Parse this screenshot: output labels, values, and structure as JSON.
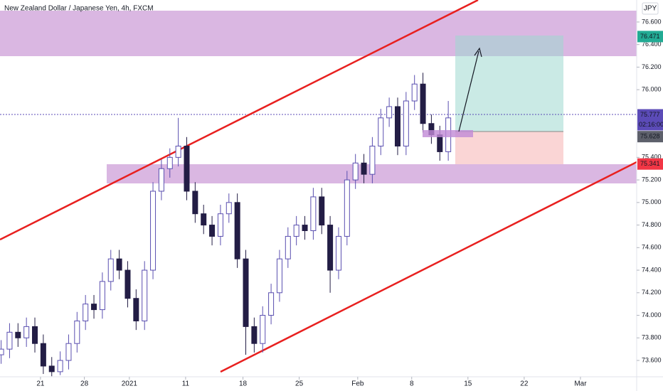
{
  "chart_data": {
    "type": "candlestick",
    "title": "New Zealand Dollar / Japanese Yen, 4h, FXCM",
    "currency": "JPY",
    "countdown": "02:16:00",
    "up_color": "#5a4fb0",
    "down_color": "#231d45",
    "x": [
      -3.5,
      -2.75,
      -2,
      -1.25,
      -0.5,
      0.25,
      1,
      1.75,
      2.5,
      3.25,
      4,
      4.75,
      5.5,
      6.25,
      7,
      7.75,
      8.5,
      9.25,
      10,
      10.75,
      11.5,
      12.25,
      13,
      13.75,
      14.5,
      15.25,
      16,
      16.75,
      17.5,
      18.25,
      19,
      19.75,
      20.5,
      21.25,
      22,
      22.75,
      23.5,
      24.25,
      25,
      25.75,
      26.5,
      27.25,
      28,
      28.75,
      29.5,
      30.25,
      31,
      31.75,
      32.5,
      33.25,
      34,
      34.75,
      35.5,
      36.25
    ],
    "open": [
      73.65,
      73.7,
      73.85,
      73.8,
      73.9,
      73.75,
      73.55,
      73.5,
      73.6,
      73.75,
      73.95,
      74.1,
      74.05,
      74.3,
      74.5,
      74.4,
      74.15,
      73.95,
      74.4,
      75.1,
      75.3,
      75.4,
      75.5,
      75.1,
      74.9,
      74.8,
      74.7,
      74.9,
      75.0,
      74.5,
      73.9,
      73.75,
      74.0,
      74.2,
      74.5,
      74.7,
      74.8,
      74.75,
      75.05,
      74.8,
      74.4,
      74.7,
      75.2,
      75.35,
      75.25,
      75.5,
      75.75,
      75.85,
      75.5,
      75.9,
      76.05,
      75.7,
      75.6,
      75.45
    ],
    "high": [
      73.78,
      73.93,
      73.93,
      73.98,
      73.98,
      73.83,
      73.63,
      73.68,
      73.83,
      74.03,
      74.18,
      74.18,
      74.38,
      74.58,
      74.58,
      74.48,
      74.23,
      74.48,
      75.18,
      75.38,
      75.48,
      75.75,
      75.58,
      75.18,
      74.98,
      74.88,
      74.98,
      75.08,
      75.08,
      74.58,
      73.98,
      74.08,
      74.28,
      74.58,
      74.78,
      74.88,
      74.88,
      75.13,
      75.13,
      74.88,
      74.78,
      75.28,
      75.43,
      75.43,
      75.58,
      75.83,
      75.93,
      75.93,
      75.98,
      76.13,
      76.15,
      75.78,
      75.68,
      75.9
    ],
    "low": [
      73.57,
      73.62,
      73.72,
      73.72,
      73.67,
      73.48,
      73.46,
      73.47,
      73.52,
      73.67,
      73.87,
      73.97,
      73.97,
      74.22,
      74.32,
      74.07,
      73.87,
      73.87,
      74.32,
      75.02,
      75.22,
      75.32,
      75.02,
      74.82,
      74.72,
      74.62,
      74.62,
      74.82,
      74.42,
      73.65,
      73.67,
      73.67,
      73.92,
      74.12,
      74.42,
      74.62,
      74.67,
      74.67,
      74.72,
      74.2,
      74.32,
      74.62,
      75.12,
      75.17,
      75.17,
      75.42,
      75.67,
      75.42,
      75.42,
      75.82,
      75.62,
      75.52,
      75.37,
      75.37
    ],
    "close": [
      73.7,
      73.85,
      73.8,
      73.9,
      73.75,
      73.55,
      73.5,
      73.6,
      73.75,
      73.95,
      74.1,
      74.05,
      74.3,
      74.5,
      74.4,
      74.15,
      73.95,
      74.4,
      75.1,
      75.3,
      75.4,
      75.5,
      75.1,
      74.9,
      74.8,
      74.7,
      74.9,
      75.0,
      74.5,
      73.9,
      73.75,
      74.0,
      74.2,
      74.5,
      74.7,
      74.8,
      74.75,
      75.05,
      74.8,
      74.4,
      74.7,
      75.2,
      75.35,
      75.25,
      75.5,
      75.75,
      75.85,
      75.5,
      75.9,
      76.05,
      75.7,
      75.6,
      75.45,
      75.75
    ],
    "xlim": [
      -3.6,
      53.0
    ],
    "xticks": [
      {
        "value": 0,
        "label": "21"
      },
      {
        "value": 3.9,
        "label": "28"
      },
      {
        "value": 7.9,
        "label": "2021"
      },
      {
        "value": 12.9,
        "label": "11"
      },
      {
        "value": 18,
        "label": "18"
      },
      {
        "value": 23,
        "label": "25"
      },
      {
        "value": 28.2,
        "label": "Feb"
      },
      {
        "value": 33,
        "label": "8"
      },
      {
        "value": 38,
        "label": "15"
      },
      {
        "value": 43,
        "label": "22"
      },
      {
        "value": 48,
        "label": "Mar"
      }
    ],
    "ylim": [
      73.455,
      76.795
    ],
    "yticks": [
      {
        "value": 76.6,
        "label": "76.600"
      },
      {
        "value": 76.4,
        "label": "76.400"
      },
      {
        "value": 76.2,
        "label": "76.200"
      },
      {
        "value": 76.0,
        "label": "76.000"
      },
      {
        "value": 75.4,
        "label": "75.400"
      },
      {
        "value": 75.2,
        "label": "75.200"
      },
      {
        "value": 75.0,
        "label": "75.000"
      },
      {
        "value": 74.8,
        "label": "74.800"
      },
      {
        "value": 74.6,
        "label": "74.600"
      },
      {
        "value": 74.4,
        "label": "74.400"
      },
      {
        "value": 74.2,
        "label": "74.200"
      },
      {
        "value": 74.0,
        "label": "74.000"
      },
      {
        "value": 73.8,
        "label": "73.800"
      },
      {
        "value": 73.6,
        "label": "73.600"
      }
    ],
    "price_labels": [
      {
        "value": 76.471,
        "color": "#22ab94"
      },
      {
        "value": 75.777,
        "color": "#5b4bb7"
      },
      {
        "value": 75.628,
        "color": "#5d606b"
      },
      {
        "value": 75.341,
        "color": "#f23645"
      }
    ]
  }
}
